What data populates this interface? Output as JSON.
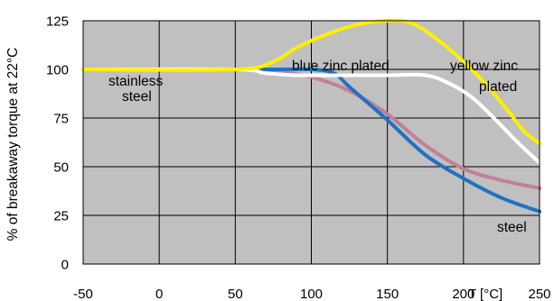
{
  "chart_data": {
    "type": "line",
    "title": "",
    "xlabel": "T [°C]",
    "ylabel": "% of breakaway torque at 22°C",
    "xlim": [
      -50,
      250
    ],
    "ylim": [
      0,
      125
    ],
    "x_ticks": [
      -50,
      0,
      50,
      100,
      150,
      200,
      250
    ],
    "y_ticks": [
      0,
      25,
      50,
      75,
      100,
      125
    ],
    "grid": true,
    "plot_background": "#c0c0c0",
    "series": [
      {
        "name": "stainless steel",
        "color": "#c08098",
        "points": [
          [
            -50,
            100
          ],
          [
            50,
            100
          ],
          [
            75,
            99
          ],
          [
            100,
            96
          ],
          [
            125,
            89
          ],
          [
            150,
            77
          ],
          [
            175,
            61
          ],
          [
            200,
            49
          ],
          [
            225,
            43
          ],
          [
            250,
            39
          ]
        ]
      },
      {
        "name": "steel",
        "color": "#1f72c0",
        "points": [
          [
            -50,
            100
          ],
          [
            50,
            100
          ],
          [
            75,
            100
          ],
          [
            100,
            100
          ],
          [
            115,
            98
          ],
          [
            125,
            91
          ],
          [
            150,
            74
          ],
          [
            175,
            56
          ],
          [
            200,
            44
          ],
          [
            225,
            34
          ],
          [
            250,
            27
          ]
        ]
      },
      {
        "name": "blue zinc plated",
        "color": "#ffffff",
        "points": [
          [
            -50,
            100
          ],
          [
            50,
            100
          ],
          [
            70,
            98
          ],
          [
            90,
            97
          ],
          [
            120,
            97
          ],
          [
            150,
            97
          ],
          [
            175,
            97
          ],
          [
            190,
            93
          ],
          [
            205,
            86
          ],
          [
            220,
            75
          ],
          [
            235,
            63
          ],
          [
            250,
            52
          ]
        ]
      },
      {
        "name": "yellow zinc plated",
        "color": "#ffef00",
        "points": [
          [
            -50,
            100
          ],
          [
            50,
            100
          ],
          [
            75,
            104
          ],
          [
            90,
            111
          ],
          [
            110,
            118
          ],
          [
            130,
            123
          ],
          [
            150,
            125
          ],
          [
            165,
            124
          ],
          [
            180,
            117
          ],
          [
            200,
            104
          ],
          [
            215,
            92
          ],
          [
            230,
            78
          ],
          [
            240,
            68
          ],
          [
            250,
            62
          ]
        ]
      }
    ],
    "annotations": [
      {
        "text": "stainless",
        "series": "stainless steel"
      },
      {
        "text": "steel",
        "series": "stainless steel"
      },
      {
        "text": "blue zinc plated",
        "series": "blue zinc plated"
      },
      {
        "text": "yellow zinc",
        "series": "yellow zinc plated"
      },
      {
        "text": "plated",
        "series": "yellow zinc plated"
      },
      {
        "text": "steel",
        "series": "steel"
      }
    ]
  }
}
